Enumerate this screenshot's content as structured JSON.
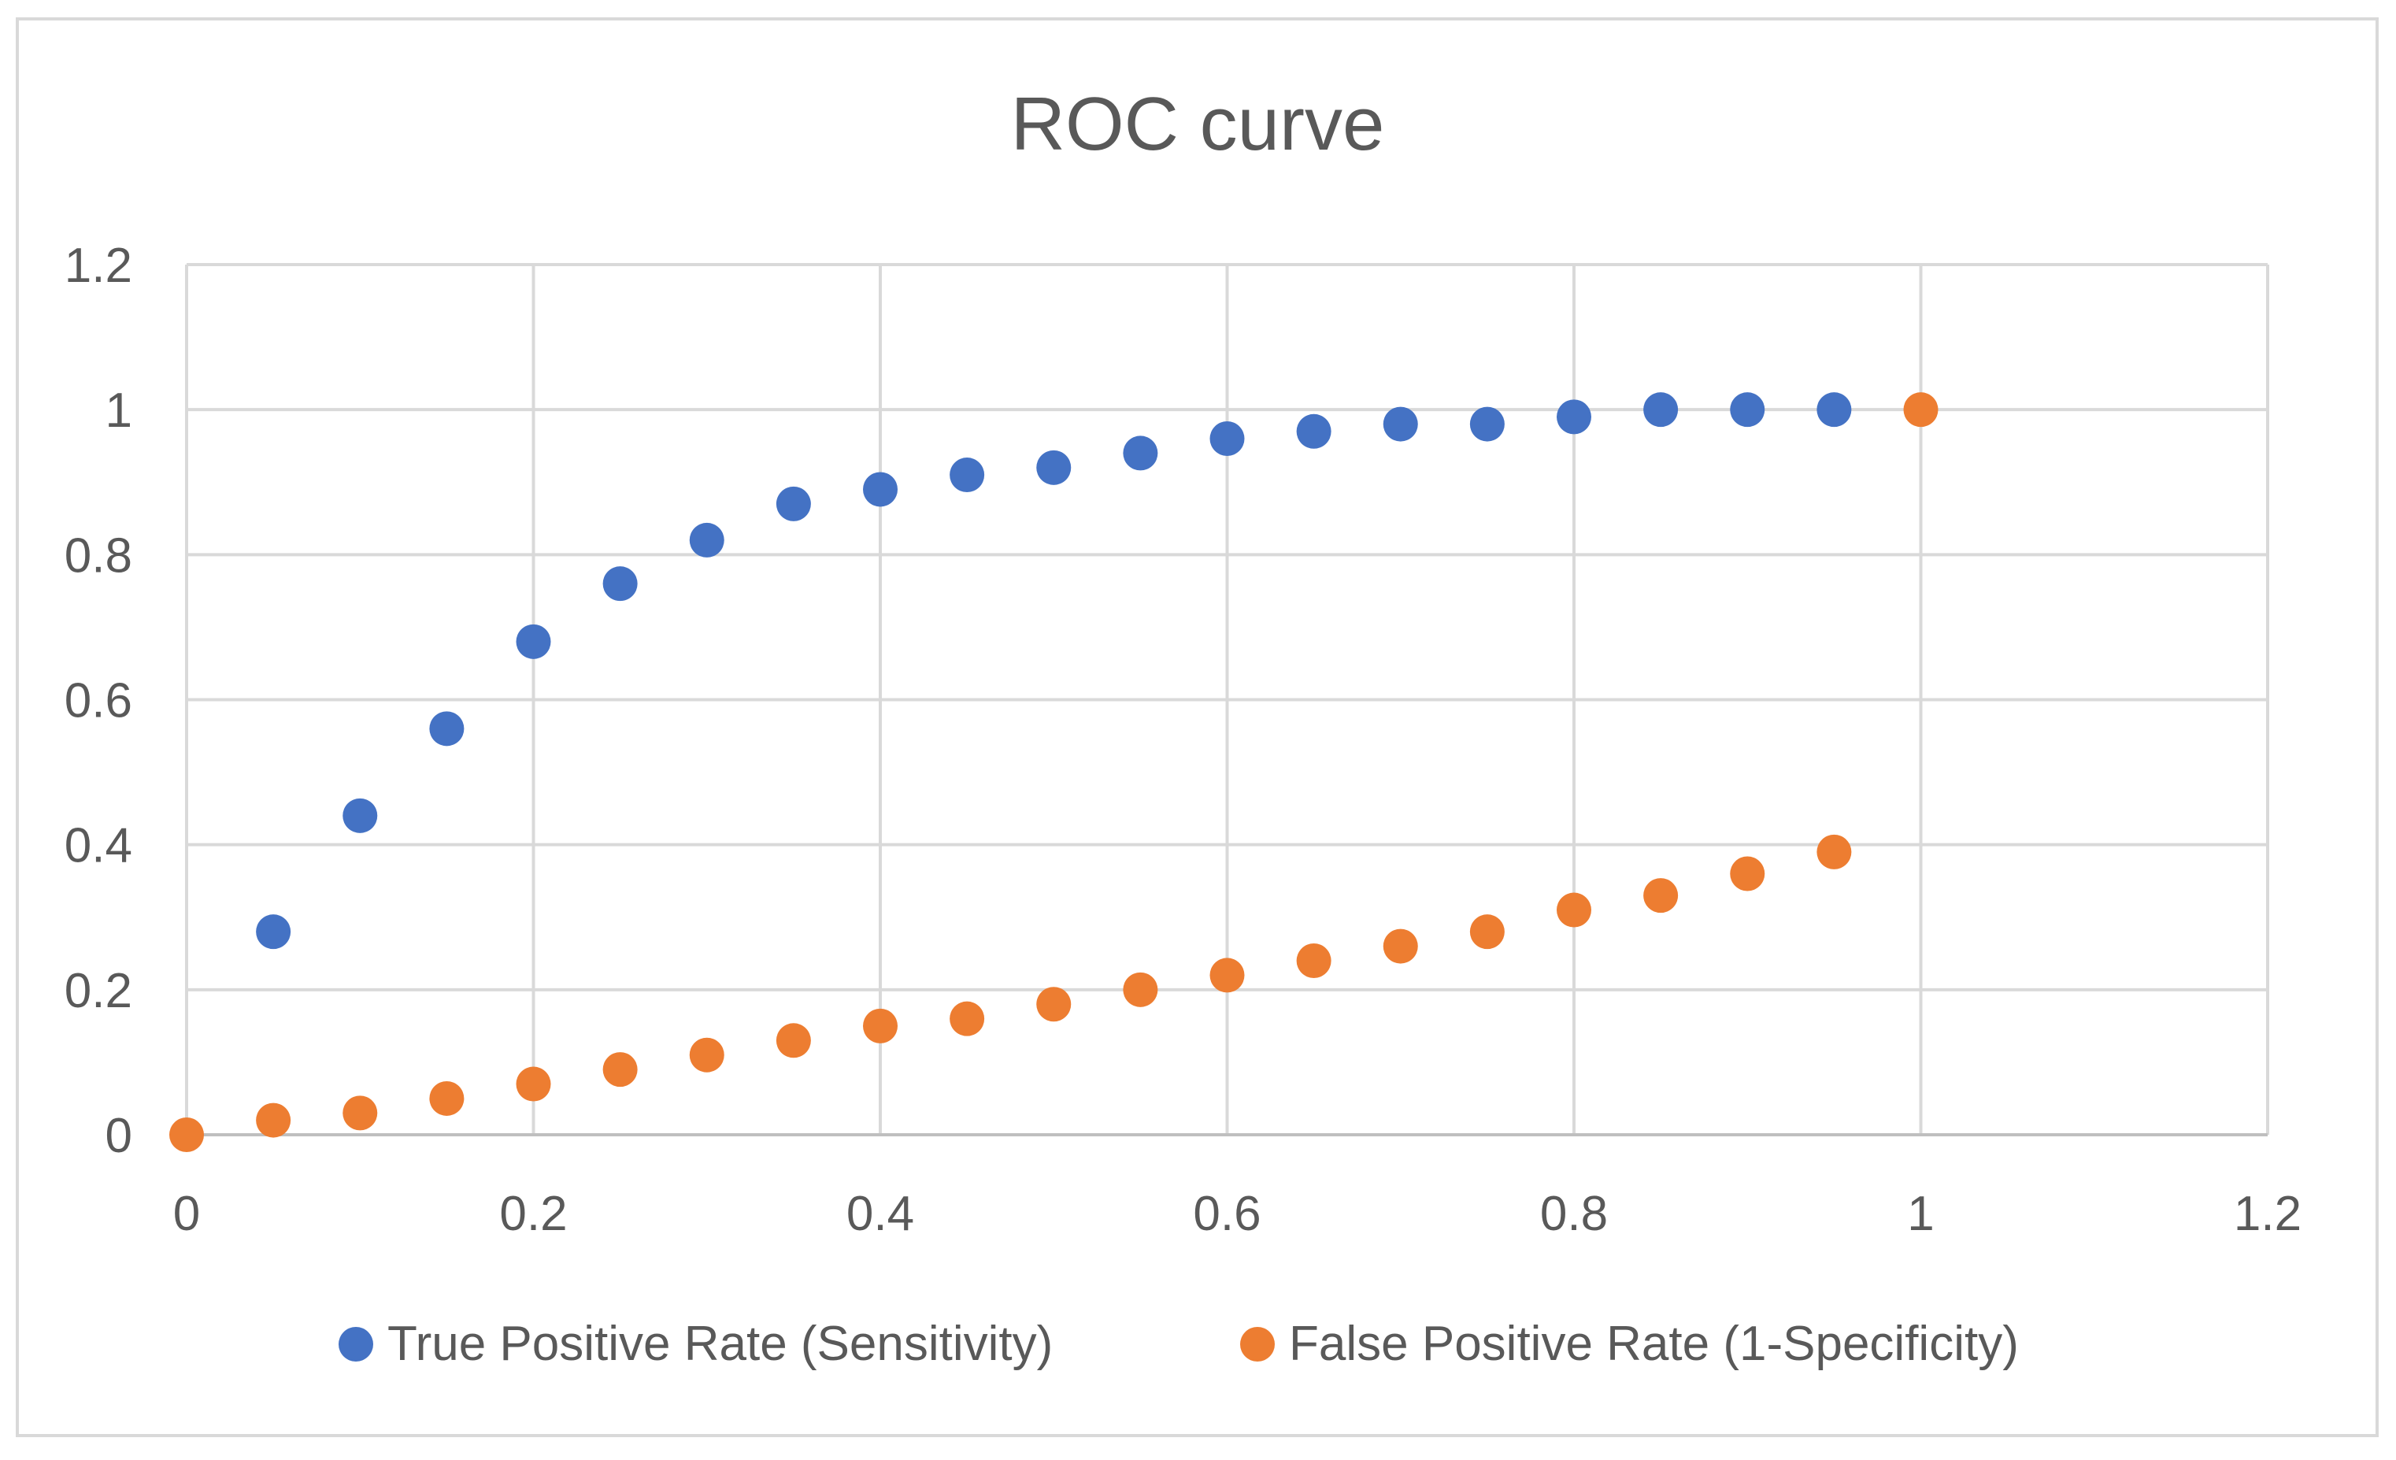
{
  "chart_data": {
    "type": "scatter",
    "title": "ROC curve",
    "xlabel": "",
    "ylabel": "",
    "xlim": [
      0,
      1.2
    ],
    "ylim": [
      0,
      1.2
    ],
    "xticks": [
      0,
      0.2,
      0.4,
      0.6,
      0.8,
      1,
      1.2
    ],
    "yticks": [
      0,
      0.2,
      0.4,
      0.6,
      0.8,
      1,
      1.2
    ],
    "xtick_labels": [
      "0",
      "0.2",
      "0.4",
      "0.6",
      "0.8",
      "1",
      "1.2"
    ],
    "ytick_labels": [
      "0",
      "0.2",
      "0.4",
      "0.6",
      "0.8",
      "1",
      "1.2"
    ],
    "grid": true,
    "legend_position": "bottom",
    "series": [
      {
        "name": "True Positive Rate (Sensitivity)",
        "color": "#4472c4",
        "x": [
          0.05,
          0.1,
          0.15,
          0.2,
          0.25,
          0.3,
          0.35,
          0.4,
          0.45,
          0.5,
          0.55,
          0.6,
          0.65,
          0.7,
          0.75,
          0.8,
          0.85,
          0.9,
          0.95
        ],
        "y": [
          0.28,
          0.44,
          0.56,
          0.68,
          0.76,
          0.82,
          0.87,
          0.89,
          0.91,
          0.92,
          0.94,
          0.96,
          0.97,
          0.98,
          0.98,
          0.99,
          1.0,
          1.0,
          1.0
        ]
      },
      {
        "name": "False Positive Rate (1-Specificity)",
        "color": "#ed7d31",
        "x": [
          0,
          0.05,
          0.1,
          0.15,
          0.2,
          0.25,
          0.3,
          0.35,
          0.4,
          0.45,
          0.5,
          0.55,
          0.6,
          0.65,
          0.7,
          0.75,
          0.8,
          0.85,
          0.9,
          0.95,
          1
        ],
        "y": [
          0,
          0.02,
          0.03,
          0.05,
          0.07,
          0.09,
          0.11,
          0.13,
          0.15,
          0.16,
          0.18,
          0.2,
          0.22,
          0.24,
          0.26,
          0.28,
          0.31,
          0.33,
          0.36,
          0.39,
          1.0
        ]
      }
    ]
  }
}
